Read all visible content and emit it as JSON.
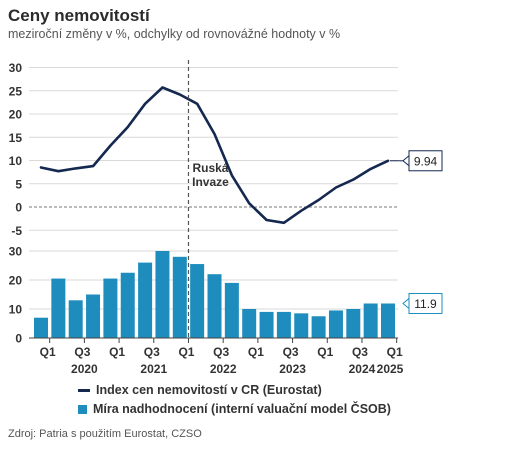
{
  "title": "Ceny nemovitostí",
  "subtitle": "meziroční změny v %, odchylky od rovnovážné hodnoty v %",
  "source": "Zdroj: Patria s použitím Eurostat, CZSO",
  "annotation": "Ruská Invaze",
  "colors": {
    "line": "#142850",
    "bar": "#1e8dbd",
    "grid": "#d9d9d9",
    "axis": "#444444"
  },
  "chart_data": [
    {
      "type": "line",
      "ylim": [
        -5,
        30
      ],
      "yticks": [
        30,
        25,
        20,
        15,
        10,
        5,
        0,
        -5
      ],
      "x": [
        "2019Q4",
        "2020Q1",
        "2020Q2",
        "2020Q3",
        "2020Q4",
        "2021Q1",
        "2021Q2",
        "2021Q3",
        "2021Q4",
        "2022Q1",
        "2022Q2",
        "2022Q3",
        "2022Q4",
        "2023Q1",
        "2023Q2",
        "2023Q3",
        "2023Q4",
        "2024Q1",
        "2024Q2",
        "2024Q3",
        "2024Q4"
      ],
      "series": [
        {
          "name": "Index cen nemovitostí v CR (Eurostat)",
          "values": [
            8.5,
            7.7,
            8.3,
            8.8,
            13.2,
            17.2,
            22.2,
            25.7,
            24.2,
            22.2,
            15.7,
            6.8,
            0.8,
            -2.8,
            -3.4,
            -0.8,
            1.5,
            4.2,
            5.9,
            8.2,
            9.94
          ]
        }
      ],
      "end_label": "9.94",
      "event_x": "2022Q1",
      "event_label": "Ruská Invaze"
    },
    {
      "type": "bar",
      "ylim": [
        0,
        30
      ],
      "yticks": [
        30,
        20,
        10,
        0
      ],
      "x": [
        "2019Q4",
        "2020Q1",
        "2020Q2",
        "2020Q3",
        "2020Q4",
        "2021Q1",
        "2021Q2",
        "2021Q3",
        "2021Q4",
        "2022Q1",
        "2022Q2",
        "2022Q3",
        "2022Q4",
        "2023Q1",
        "2023Q2",
        "2023Q3",
        "2023Q4",
        "2024Q1",
        "2024Q2",
        "2024Q3",
        "2024Q4"
      ],
      "series": [
        {
          "name": "Míra nadhodnocení (interní valuační model ČSOB)",
          "values": [
            7,
            20.5,
            13,
            15,
            20.5,
            22.5,
            26,
            30,
            28,
            25.5,
            22,
            19,
            10,
            9,
            9,
            8.5,
            7.5,
            9.5,
            10,
            11.9,
            11.9
          ]
        }
      ],
      "end_label": "11.9"
    }
  ],
  "x_axis": {
    "quarter_labels": [
      "Q1",
      "Q3",
      "Q1",
      "Q3",
      "Q1",
      "Q3",
      "Q1",
      "Q3",
      "Q1",
      "Q3",
      "Q1"
    ],
    "year_labels": [
      "2020",
      "2021",
      "2022",
      "2023",
      "2024",
      "2025"
    ]
  },
  "legend": [
    {
      "label": "Index cen nemovitostí v CR (Eurostat)",
      "kind": "line"
    },
    {
      "label": "Míra nadhodnocení (interní valuační model ČSOB)",
      "kind": "bar"
    }
  ]
}
